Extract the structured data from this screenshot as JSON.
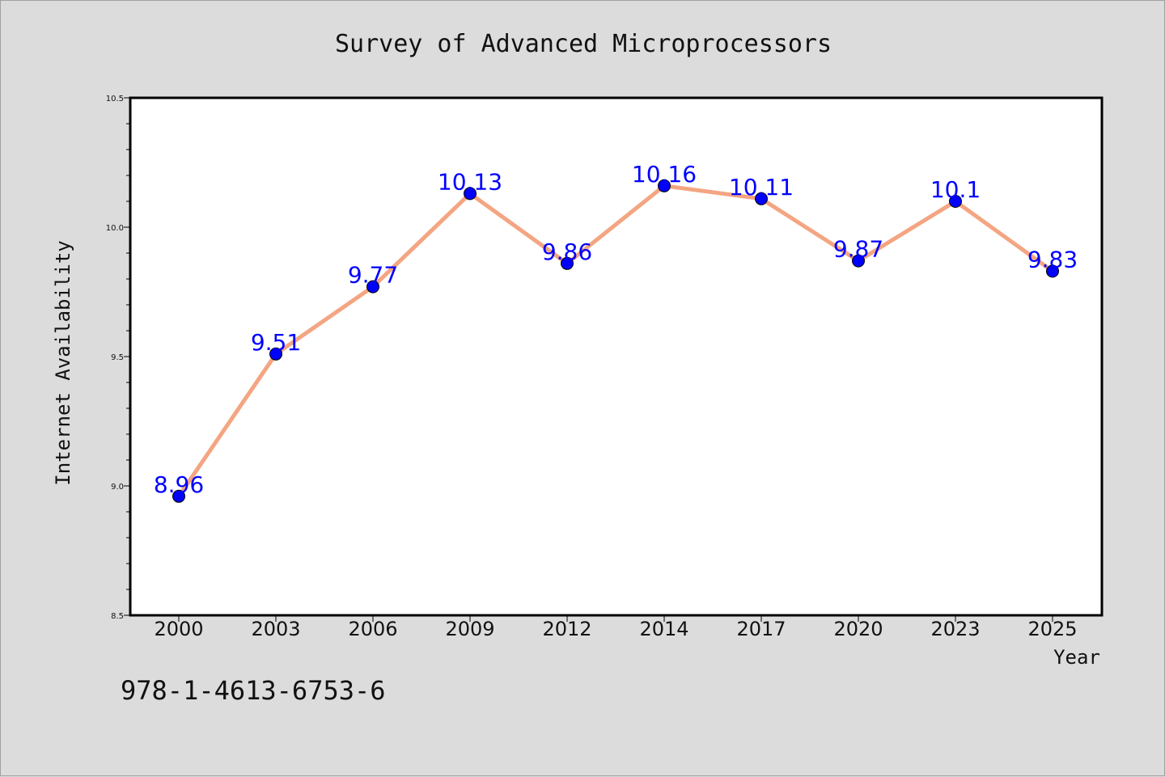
{
  "chart_data": {
    "type": "line",
    "title": "Survey of Advanced Microprocessors",
    "xlabel": "Year",
    "ylabel": "Internet Availability",
    "categories": [
      "2000",
      "2003",
      "2006",
      "2009",
      "2012",
      "2014",
      "2017",
      "2020",
      "2023",
      "2025"
    ],
    "series": [
      {
        "values": [
          8.96,
          9.51,
          9.77,
          10.13,
          9.86,
          10.16,
          10.11,
          9.87,
          10.1,
          9.83
        ],
        "labels": [
          "8.96",
          "9.51",
          "9.77",
          "10.13",
          "9.86",
          "10.16",
          "10.11",
          "9.87",
          "10.1",
          "9.83"
        ],
        "line_color": "#f4a582",
        "marker_color": "#0000ff"
      }
    ],
    "ylim": [
      8.5,
      10.5
    ],
    "yticks": [
      "8.5",
      "9.0",
      "9.5",
      "10.0",
      "10.5"
    ],
    "grid": false
  },
  "footer_text": "978-1-4613-6753-6",
  "colors": {
    "background": "#dcdcdc",
    "plot_background": "#ffffff",
    "label_color": "#0000ff"
  }
}
